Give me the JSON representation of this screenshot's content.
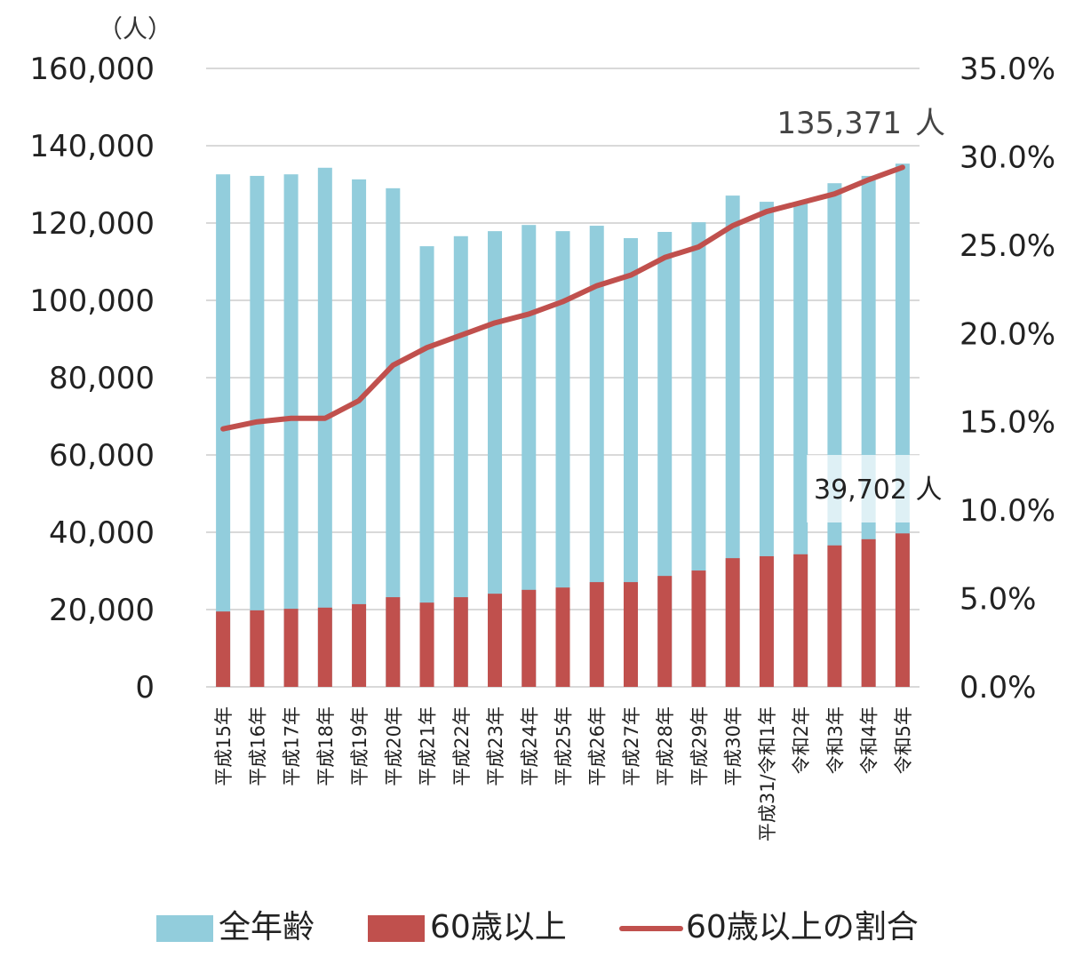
{
  "chart_data": {
    "type": "bar",
    "left_unit_label": "（人）",
    "categories": [
      "平成15年",
      "平成16年",
      "平成17年",
      "平成18年",
      "平成19年",
      "平成20年",
      "平成21年",
      "平成22年",
      "平成23年",
      "平成24年",
      "平成25年",
      "平成26年",
      "平成27年",
      "平成28年",
      "平成29年",
      "平成30年",
      "平成31/令和1年",
      "令和2年",
      "令和3年",
      "令和4年",
      "令和5年"
    ],
    "series": [
      {
        "name": "全年齢",
        "kind": "bar",
        "axis": "left",
        "color": "#92CDDC",
        "values": [
          132600,
          132200,
          132600,
          134300,
          131300,
          129000,
          114000,
          116600,
          117900,
          119500,
          117900,
          119300,
          116100,
          117700,
          120200,
          127100,
          125500,
          125300,
          130300,
          132200,
          135371
        ]
      },
      {
        "name": "60歳以上",
        "kind": "bar",
        "axis": "left",
        "color": "#C0504D",
        "values": [
          19500,
          19800,
          20200,
          20500,
          21400,
          23200,
          21800,
          23200,
          24100,
          25100,
          25700,
          27100,
          27100,
          28700,
          30100,
          33300,
          33800,
          34300,
          36600,
          38200,
          39702
        ]
      },
      {
        "name": "60歳以上の割合",
        "kind": "line",
        "axis": "right",
        "color": "#C0504D",
        "values": [
          14.6,
          15.0,
          15.2,
          15.2,
          16.2,
          18.2,
          19.2,
          19.9,
          20.6,
          21.1,
          21.8,
          22.7,
          23.3,
          24.3,
          24.9,
          26.1,
          26.9,
          27.4,
          27.9,
          28.7,
          29.4
        ]
      }
    ],
    "y_left": {
      "range": [
        0,
        160000
      ],
      "ticks": [
        "0",
        "20,000",
        "40,000",
        "60,000",
        "80,000",
        "100,000",
        "120,000",
        "140,000",
        "160,000"
      ]
    },
    "y_right": {
      "range": [
        0,
        35
      ],
      "ticks": [
        "0.0%",
        "5.0%",
        "10.0%",
        "15.0%",
        "20.0%",
        "25.0%",
        "30.0%",
        "35.0%"
      ]
    },
    "annotations": [
      {
        "text": "135,371 人",
        "series": "全年齢",
        "category": "令和5年"
      },
      {
        "text": "39,702 人",
        "series": "60歳以上",
        "category": "令和5年"
      }
    ],
    "grid": true,
    "legend_position": "bottom"
  }
}
